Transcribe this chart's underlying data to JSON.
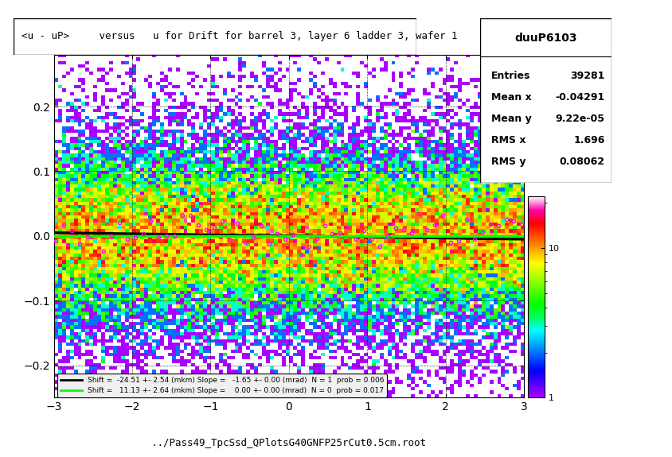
{
  "title": "<u - uP>     versus   u for Drift for barrel 3, layer 6 ladder 3, wafer 1",
  "xlabel": "../Pass49_TpcSsd_QPlotsG40GNFP25rCut0.5cm.root",
  "xlim": [
    -3,
    3
  ],
  "ylim": [
    -0.25,
    0.28
  ],
  "xmajor_ticks": [
    -3,
    -2,
    -1,
    0,
    1,
    2,
    3
  ],
  "ymajor_ticks": [
    -0.2,
    -0.1,
    0.0,
    0.1,
    0.2
  ],
  "stats_title": "duuP6103",
  "stats": {
    "Entries": "39281",
    "Mean x": "-0.04291",
    "Mean y": "9.22e-05",
    "RMS x": "1.696",
    "RMS y": "0.08062"
  },
  "legend_black_label": "Shift =  -24.51 +- 2.54 (mkm) Slope =   -1.65 +- 0.00 (mrad)  N = 1  prob = 0.006",
  "legend_green_label": "Shift =   11.13 +- 2.64 (mkm) Slope =    0.00 +- 0.00 (mrad)  N = 0  prob = 0.017",
  "black_line_slope": -0.00165,
  "black_line_intercept": -2.45e-05,
  "green_line_slope": 0.0,
  "green_line_intercept": 1.11e-05,
  "background_color": "#ffffff",
  "plot_bg_color": "#e8e8e8"
}
